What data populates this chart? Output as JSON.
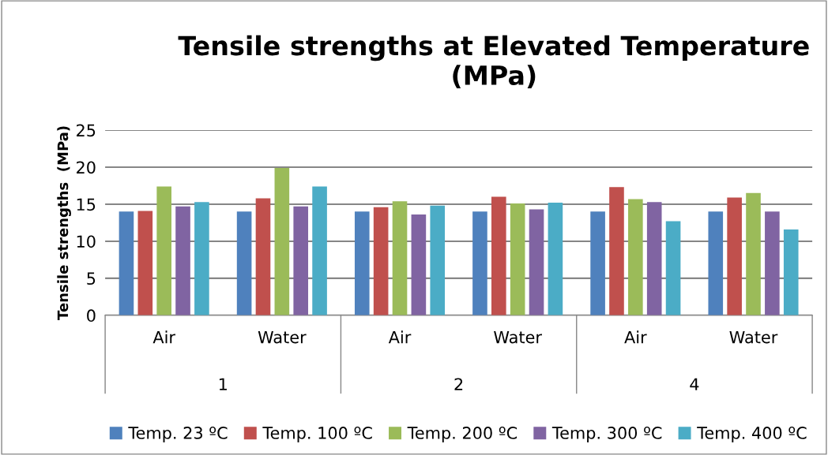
{
  "chart_data": {
    "type": "bar",
    "title": "Tensile strengths at Elevated Temperature (MPa)",
    "ylabel": "Tensile strengths  (MPa)",
    "categories": [
      "Air",
      "Water",
      "Air",
      "Water",
      "Air",
      "Water"
    ],
    "annotations": [
      "1",
      "2",
      "4"
    ],
    "series": [
      {
        "name": "Temp. 23 ºC",
        "color": "#4f81bd",
        "values": [
          14.0,
          14.0,
          14.0,
          14.0,
          14.0,
          14.0
        ]
      },
      {
        "name": "Temp. 100 ºC",
        "color": "#c0504d",
        "values": [
          14.1,
          15.8,
          14.6,
          16.0,
          17.3,
          15.9
        ]
      },
      {
        "name": "Temp. 200 ºC",
        "color": "#9bbb59",
        "values": [
          17.4,
          19.9,
          15.4,
          15.1,
          15.7,
          16.5
        ]
      },
      {
        "name": "Temp. 300 ºC",
        "color": "#8064a2",
        "values": [
          14.7,
          14.7,
          13.6,
          14.3,
          15.3,
          14.0
        ]
      },
      {
        "name": "Temp. 400 ºC",
        "color": "#4bacc6",
        "values": [
          15.3,
          17.4,
          14.8,
          15.2,
          12.7,
          11.6
        ]
      }
    ],
    "ylim": [
      0,
      25
    ],
    "yticks": [
      0,
      5,
      10,
      15,
      20,
      25
    ],
    "grid": "y",
    "legend": "bottom"
  }
}
